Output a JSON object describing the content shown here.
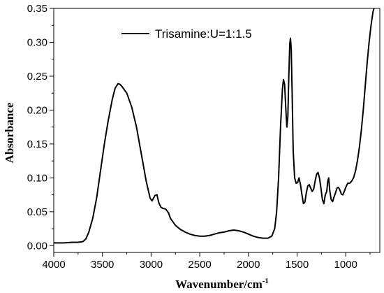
{
  "chart_data": {
    "type": "line",
    "xlabel": "Wavenumber/cm",
    "xlabel_superscript": "-1",
    "ylabel": "Absorbance",
    "xlim": [
      4000,
      650
    ],
    "ylim": [
      -0.01,
      0.35
    ],
    "x_ticks": [
      {
        "value": 4000,
        "label": "4000"
      },
      {
        "value": 3500,
        "label": "3500"
      },
      {
        "value": 3000,
        "label": "3000"
      },
      {
        "value": 2500,
        "label": "2500"
      },
      {
        "value": 2000,
        "label": "2000"
      },
      {
        "value": 1500,
        "label": "1500"
      },
      {
        "value": 1000,
        "label": "1000"
      }
    ],
    "y_ticks": [
      {
        "value": 0.0,
        "label": "0.00"
      },
      {
        "value": 0.05,
        "label": "0.05"
      },
      {
        "value": 0.1,
        "label": "0.10"
      },
      {
        "value": 0.15,
        "label": "0.15"
      },
      {
        "value": 0.2,
        "label": "0.20"
      },
      {
        "value": 0.25,
        "label": "0.25"
      },
      {
        "value": 0.3,
        "label": "0.30"
      },
      {
        "value": 0.35,
        "label": "0.35"
      }
    ],
    "legend_position": "top-center",
    "series": [
      {
        "name": "Trisamine:U=1:1.5",
        "color": "#000000",
        "points": [
          [
            4000,
            0.004
          ],
          [
            3900,
            0.004
          ],
          [
            3800,
            0.005
          ],
          [
            3750,
            0.005
          ],
          [
            3700,
            0.006
          ],
          [
            3670,
            0.01
          ],
          [
            3640,
            0.02
          ],
          [
            3600,
            0.04
          ],
          [
            3560,
            0.07
          ],
          [
            3520,
            0.11
          ],
          [
            3480,
            0.15
          ],
          [
            3440,
            0.185
          ],
          [
            3400,
            0.215
          ],
          [
            3370,
            0.232
          ],
          [
            3340,
            0.239
          ],
          [
            3320,
            0.238
          ],
          [
            3300,
            0.235
          ],
          [
            3250,
            0.225
          ],
          [
            3200,
            0.205
          ],
          [
            3150,
            0.175
          ],
          [
            3100,
            0.135
          ],
          [
            3050,
            0.095
          ],
          [
            3010,
            0.07
          ],
          [
            2990,
            0.066
          ],
          [
            2960,
            0.074
          ],
          [
            2940,
            0.075
          ],
          [
            2920,
            0.063
          ],
          [
            2900,
            0.057
          ],
          [
            2880,
            0.055
          ],
          [
            2850,
            0.054
          ],
          [
            2820,
            0.048
          ],
          [
            2800,
            0.04
          ],
          [
            2750,
            0.03
          ],
          [
            2700,
            0.024
          ],
          [
            2650,
            0.02
          ],
          [
            2600,
            0.017
          ],
          [
            2550,
            0.015
          ],
          [
            2500,
            0.014
          ],
          [
            2450,
            0.014
          ],
          [
            2400,
            0.015
          ],
          [
            2350,
            0.017
          ],
          [
            2300,
            0.019
          ],
          [
            2250,
            0.02
          ],
          [
            2200,
            0.022
          ],
          [
            2150,
            0.023
          ],
          [
            2100,
            0.022
          ],
          [
            2050,
            0.02
          ],
          [
            2000,
            0.017
          ],
          [
            1950,
            0.014
          ],
          [
            1900,
            0.012
          ],
          [
            1850,
            0.011
          ],
          [
            1800,
            0.011
          ],
          [
            1760,
            0.014
          ],
          [
            1730,
            0.025
          ],
          [
            1710,
            0.05
          ],
          [
            1690,
            0.1
          ],
          [
            1670,
            0.175
          ],
          [
            1650,
            0.232
          ],
          [
            1640,
            0.245
          ],
          [
            1628,
            0.238
          ],
          [
            1615,
            0.2
          ],
          [
            1605,
            0.175
          ],
          [
            1595,
            0.19
          ],
          [
            1585,
            0.25
          ],
          [
            1575,
            0.298
          ],
          [
            1568,
            0.306
          ],
          [
            1560,
            0.29
          ],
          [
            1550,
            0.22
          ],
          [
            1540,
            0.14
          ],
          [
            1525,
            0.1
          ],
          [
            1510,
            0.092
          ],
          [
            1495,
            0.093
          ],
          [
            1480,
            0.1
          ],
          [
            1465,
            0.09
          ],
          [
            1450,
            0.075
          ],
          [
            1435,
            0.062
          ],
          [
            1420,
            0.064
          ],
          [
            1405,
            0.078
          ],
          [
            1390,
            0.088
          ],
          [
            1375,
            0.09
          ],
          [
            1360,
            0.085
          ],
          [
            1345,
            0.08
          ],
          [
            1330,
            0.083
          ],
          [
            1315,
            0.095
          ],
          [
            1300,
            0.105
          ],
          [
            1285,
            0.108
          ],
          [
            1270,
            0.1
          ],
          [
            1255,
            0.085
          ],
          [
            1240,
            0.068
          ],
          [
            1225,
            0.062
          ],
          [
            1210,
            0.075
          ],
          [
            1195,
            0.08
          ],
          [
            1185,
            0.095
          ],
          [
            1175,
            0.1
          ],
          [
            1165,
            0.082
          ],
          [
            1150,
            0.068
          ],
          [
            1135,
            0.065
          ],
          [
            1120,
            0.072
          ],
          [
            1105,
            0.078
          ],
          [
            1090,
            0.085
          ],
          [
            1075,
            0.086
          ],
          [
            1060,
            0.082
          ],
          [
            1045,
            0.076
          ],
          [
            1030,
            0.075
          ],
          [
            1015,
            0.08
          ],
          [
            1000,
            0.086
          ],
          [
            980,
            0.092
          ],
          [
            960,
            0.092
          ],
          [
            940,
            0.095
          ],
          [
            920,
            0.1
          ],
          [
            900,
            0.11
          ],
          [
            880,
            0.125
          ],
          [
            860,
            0.145
          ],
          [
            840,
            0.17
          ],
          [
            820,
            0.2
          ],
          [
            800,
            0.235
          ],
          [
            780,
            0.27
          ],
          [
            760,
            0.3
          ],
          [
            740,
            0.325
          ],
          [
            720,
            0.345
          ],
          [
            710,
            0.35
          ]
        ]
      }
    ]
  }
}
